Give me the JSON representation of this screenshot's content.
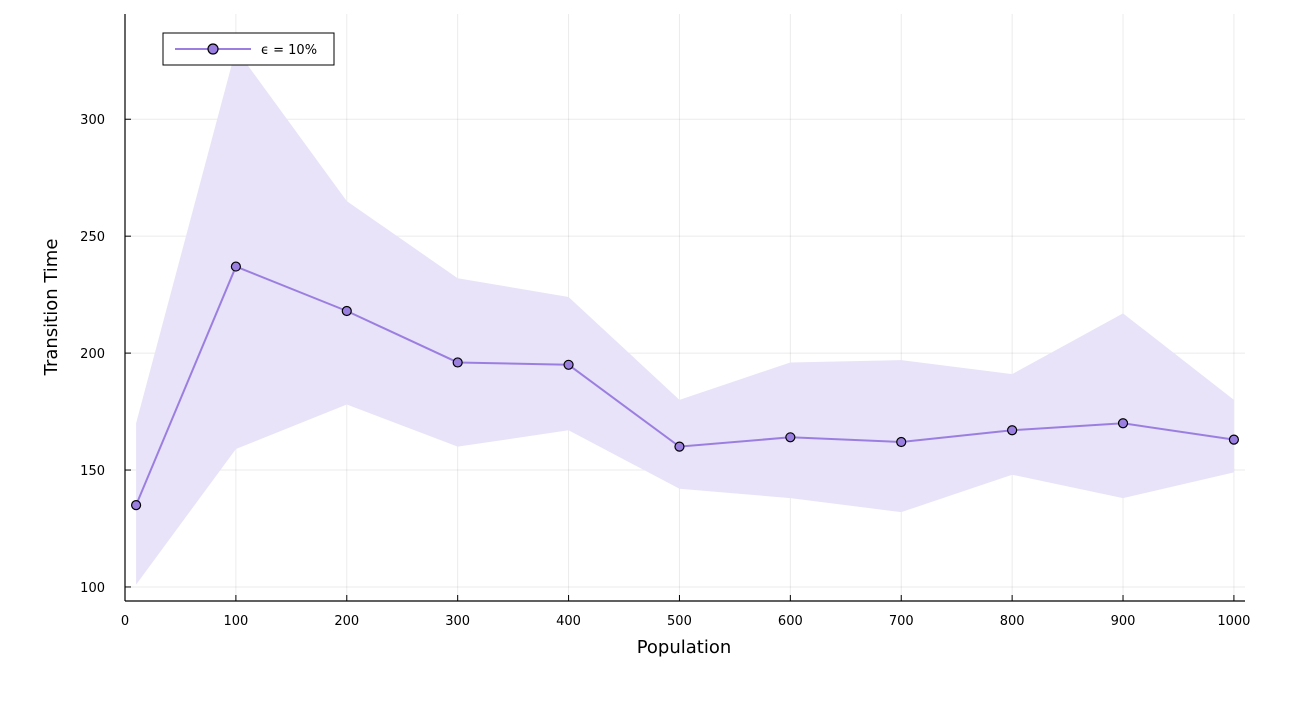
{
  "chart_data": {
    "type": "line",
    "title": "",
    "xlabel": "Population",
    "ylabel": "Transition Time",
    "xlim": [
      0,
      1010
    ],
    "ylim": [
      94,
      345
    ],
    "x_ticks": [
      0,
      100,
      200,
      300,
      400,
      500,
      600,
      700,
      800,
      900,
      1000
    ],
    "y_ticks": [
      100,
      150,
      200,
      250,
      300
    ],
    "grid": true,
    "legend_position": "top-left",
    "series": [
      {
        "name": "ϵ = 10%",
        "color": "#9b7fe0",
        "band_color": "#e8e3f8",
        "x": [
          10,
          100,
          200,
          300,
          400,
          500,
          600,
          700,
          800,
          900,
          1000
        ],
        "y": [
          135,
          237,
          218,
          196,
          195,
          160,
          164,
          162,
          167,
          170,
          163
        ],
        "lower": [
          101,
          159,
          178,
          160,
          167,
          142,
          138,
          132,
          148,
          138,
          149
        ],
        "upper": [
          170,
          330,
          265,
          232,
          224,
          180,
          196,
          197,
          191,
          217,
          180
        ]
      }
    ]
  }
}
